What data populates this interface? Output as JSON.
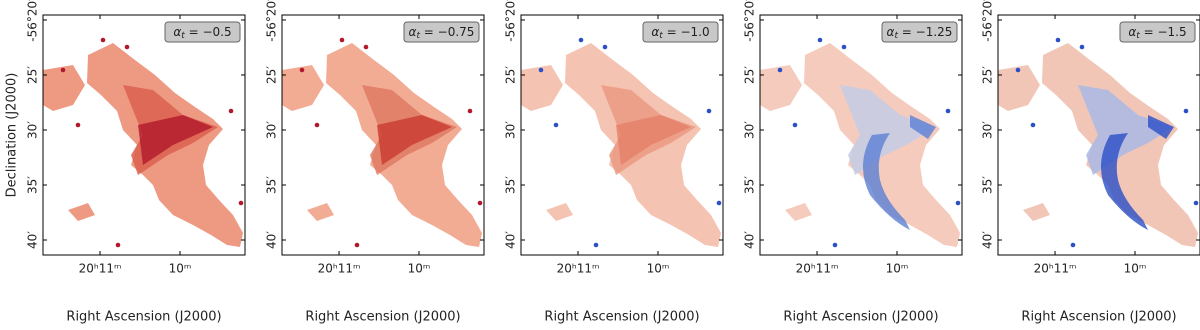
{
  "chart_data": [
    {
      "type": "image",
      "annotation": {
        "symbol": "α",
        "subscript": "t",
        "text": " = −0.5"
      },
      "xlabel": "Right Ascension (J2000)",
      "ylabel": "Declination (J2000)",
      "xlim": [
        20.19521,
        20.15313
      ],
      "xticks": [
        {
          "value": 20.18333,
          "label": "20ʰ11ᵐ"
        },
        {
          "value": 20.16667,
          "label": "10ᵐ"
        }
      ],
      "ylim": [
        -56.6894,
        -56.3258
      ],
      "yticks": [
        {
          "value": -56.33333,
          "label": "-56°20′"
        },
        {
          "value": -56.41667,
          "label": "25′"
        },
        {
          "value": -56.5,
          "label": "30′"
        },
        {
          "value": -56.58333,
          "label": "35′"
        },
        {
          "value": -56.66667,
          "label": "40′"
        }
      ]
    },
    {
      "type": "image",
      "annotation": {
        "symbol": "α",
        "subscript": "t",
        "text": " = −0.75"
      },
      "xlabel": "Right Ascension (J2000)",
      "xlim": [
        20.19521,
        20.15313
      ],
      "xticks": [
        {
          "value": 20.18333,
          "label": "20ʰ11ᵐ"
        },
        {
          "value": 20.16667,
          "label": "10ᵐ"
        }
      ],
      "ylim": [
        -56.6894,
        -56.3258
      ],
      "yticks": [
        {
          "value": -56.33333,
          "label": "-56°20′"
        },
        {
          "value": -56.41667,
          "label": "25′"
        },
        {
          "value": -56.5,
          "label": "30′"
        },
        {
          "value": -56.58333,
          "label": "35′"
        },
        {
          "value": -56.66667,
          "label": "40′"
        }
      ]
    },
    {
      "type": "image",
      "annotation": {
        "symbol": "α",
        "subscript": "t",
        "text": " = −1.0"
      },
      "xlabel": "Right Ascension (J2000)",
      "xlim": [
        20.19521,
        20.15313
      ],
      "xticks": [
        {
          "value": 20.18333,
          "label": "20ʰ11ᵐ"
        },
        {
          "value": 20.16667,
          "label": "10ᵐ"
        }
      ],
      "ylim": [
        -56.6894,
        -56.3258
      ],
      "yticks": [
        {
          "value": -56.33333,
          "label": "-56°20′"
        },
        {
          "value": -56.41667,
          "label": "25′"
        },
        {
          "value": -56.5,
          "label": "30′"
        },
        {
          "value": -56.58333,
          "label": "35′"
        },
        {
          "value": -56.66667,
          "label": "40′"
        }
      ]
    },
    {
      "type": "image",
      "annotation": {
        "symbol": "α",
        "subscript": "t",
        "text": " = −1.25"
      },
      "xlabel": "Right Ascension (J2000)",
      "xlim": [
        20.19521,
        20.15313
      ],
      "xticks": [
        {
          "value": 20.18333,
          "label": "20ʰ11ᵐ"
        },
        {
          "value": 20.16667,
          "label": "10ᵐ"
        }
      ],
      "ylim": [
        -56.6894,
        -56.3258
      ],
      "yticks": [
        {
          "value": -56.33333,
          "label": "-56°20′"
        },
        {
          "value": -56.41667,
          "label": "25′"
        },
        {
          "value": -56.5,
          "label": "30′"
        },
        {
          "value": -56.58333,
          "label": "35′"
        },
        {
          "value": -56.66667,
          "label": "40′"
        }
      ]
    },
    {
      "type": "image",
      "annotation": {
        "symbol": "α",
        "subscript": "t",
        "text": " = −1.5"
      },
      "xlabel": "Right Ascension (J2000)",
      "xlim": [
        20.19521,
        20.15313
      ],
      "xticks": [
        {
          "value": 20.18333,
          "label": "20ʰ11ᵐ"
        },
        {
          "value": 20.16667,
          "label": "10ᵐ"
        }
      ],
      "ylim": [
        -56.6894,
        -56.3258
      ],
      "yticks": [
        {
          "value": -56.33333,
          "label": "-56°20′"
        },
        {
          "value": -56.41667,
          "label": "25′"
        },
        {
          "value": -56.5,
          "label": "30′"
        },
        {
          "value": -56.58333,
          "label": "35′"
        },
        {
          "value": -56.66667,
          "label": "40′"
        }
      ]
    }
  ]
}
